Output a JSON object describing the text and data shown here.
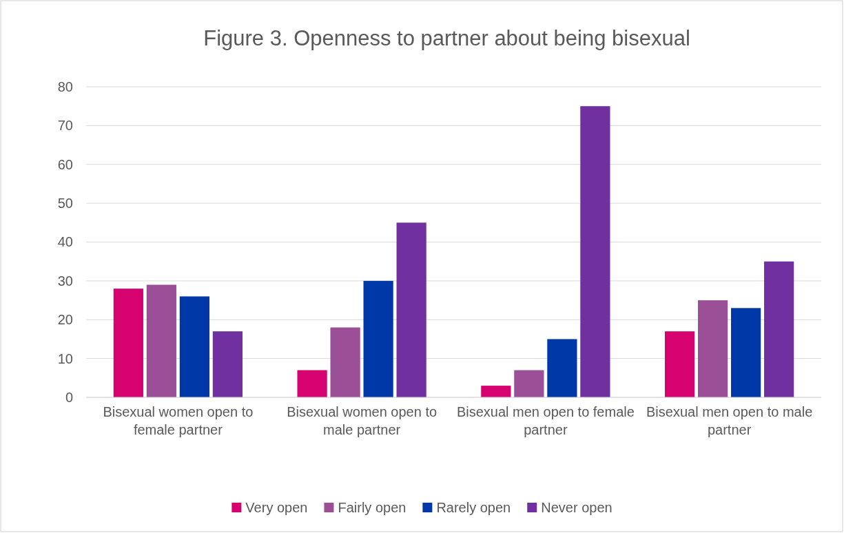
{
  "chart_data": {
    "type": "bar",
    "title": "Figure 3. Openness to partner about being bisexual",
    "categories": [
      "Bisexual women open to female partner",
      "Bisexual women open to male partner",
      "Bisexual men open to female partner",
      "Bisexual men open to male partner"
    ],
    "series": [
      {
        "name": "Very open",
        "color": "#d60270",
        "values": [
          28,
          7,
          3,
          17
        ]
      },
      {
        "name": "Fairly open",
        "color": "#9b4f96",
        "values": [
          29,
          18,
          7,
          25
        ]
      },
      {
        "name": "Rarely open",
        "color": "#0038a8",
        "values": [
          26,
          30,
          15,
          23
        ]
      },
      {
        "name": "Never open",
        "color": "#7030a0",
        "values": [
          17,
          45,
          75,
          35
        ]
      }
    ],
    "ylim": [
      0,
      80
    ],
    "yticks": [
      0,
      10,
      20,
      30,
      40,
      50,
      60,
      70,
      80
    ],
    "grid": "y",
    "legend": "bottom"
  }
}
